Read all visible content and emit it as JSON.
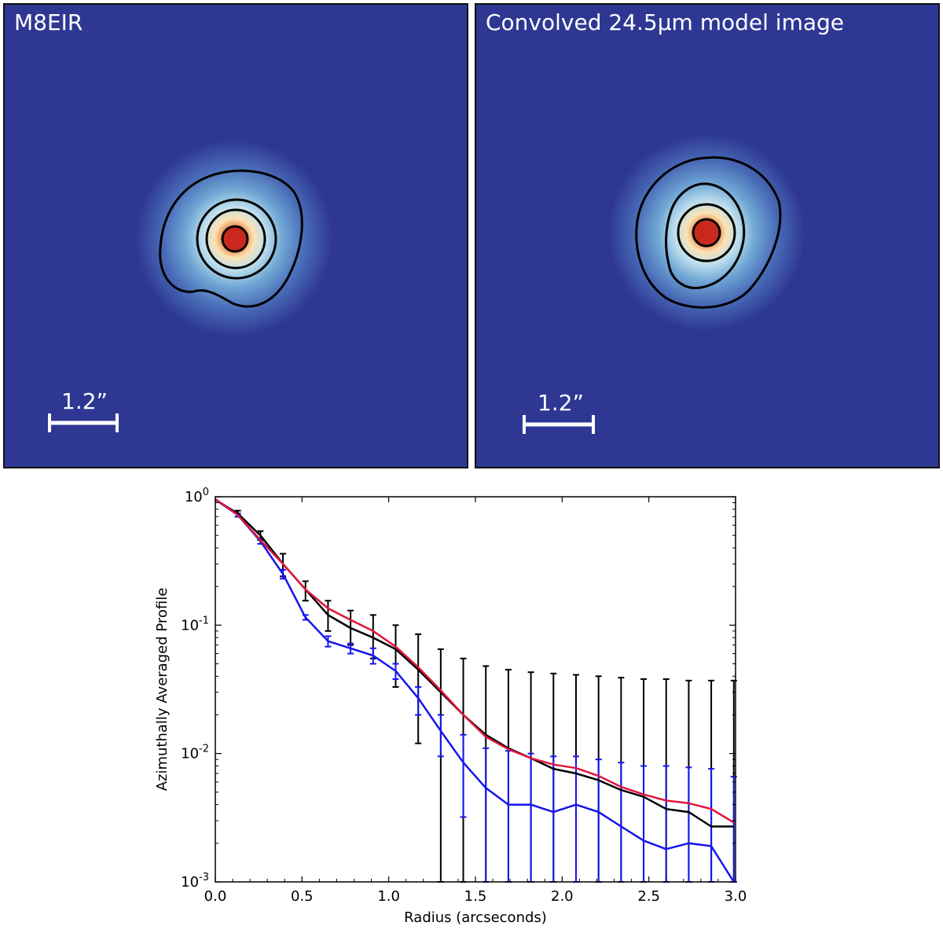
{
  "panels": [
    {
      "title": "M8EIR",
      "scale_bar_label": "1.2”"
    },
    {
      "title": "Convolved 24.5μm model image",
      "scale_bar_label": "1.2”"
    }
  ],
  "colors": {
    "background": "#2e3893",
    "core": "#c8281e",
    "black_series": "#000000",
    "blue_series": "#1515ee",
    "red_series": "#e0163c"
  },
  "chart_data": {
    "type": "line",
    "title": "",
    "xlabel": "Radius (arcseconds)",
    "ylabel": "Azimuthally Averaged Profile",
    "xlim": [
      0.0,
      3.0
    ],
    "ylim_log10": [
      -3,
      0
    ],
    "yscale": "log",
    "x_ticks": [
      "0.0",
      "0.5",
      "1.0",
      "1.5",
      "2.0",
      "2.5",
      "3.0"
    ],
    "x_tick_values": [
      0.0,
      0.5,
      1.0,
      1.5,
      2.0,
      2.5,
      3.0
    ],
    "y_ticks": [
      {
        "base": "10",
        "exp": "0",
        "value": 1
      },
      {
        "base": "10",
        "exp": "-1",
        "value": 0.1
      },
      {
        "base": "10",
        "exp": "-2",
        "value": 0.01
      },
      {
        "base": "10",
        "exp": "-3",
        "value": 0.001
      }
    ],
    "x": [
      0.0,
      0.13,
      0.26,
      0.39,
      0.52,
      0.65,
      0.78,
      0.91,
      1.04,
      1.17,
      1.3,
      1.43,
      1.56,
      1.69,
      1.82,
      1.95,
      2.08,
      2.21,
      2.34,
      2.47,
      2.6,
      2.73,
      2.86,
      2.99
    ],
    "series": [
      {
        "name": "black",
        "color": "#000000",
        "values": [
          0.95,
          0.74,
          0.5,
          0.3,
          0.19,
          0.12,
          0.095,
          0.08,
          0.065,
          0.045,
          0.03,
          0.02,
          0.014,
          0.011,
          0.0092,
          0.0076,
          0.007,
          0.0062,
          0.0052,
          0.0046,
          0.0037,
          0.0035,
          0.0027,
          0.0027
        ],
        "err_upper": [
          null,
          0.78,
          0.54,
          0.36,
          0.22,
          0.155,
          0.13,
          0.12,
          0.1,
          0.085,
          0.065,
          0.055,
          0.048,
          0.045,
          0.043,
          0.042,
          0.041,
          0.04,
          0.039,
          0.038,
          0.038,
          0.037,
          0.037,
          0.037
        ],
        "err_lower": [
          null,
          0.7,
          0.46,
          0.24,
          0.155,
          0.09,
          0.07,
          0.055,
          0.033,
          0.012,
          0.001,
          0.001,
          0.001,
          0.001,
          0.001,
          0.001,
          0.001,
          0.001,
          0.001,
          0.001,
          0.001,
          0.001,
          0.001,
          0.001
        ]
      },
      {
        "name": "blue",
        "color": "#1515ee",
        "values": [
          0.95,
          0.72,
          0.45,
          0.25,
          0.115,
          0.075,
          0.066,
          0.058,
          0.044,
          0.027,
          0.015,
          0.0085,
          0.0054,
          0.004,
          0.004,
          0.0035,
          0.004,
          0.0035,
          0.0027,
          0.0021,
          0.0018,
          0.002,
          0.0019,
          0.001
        ],
        "err_upper": [
          null,
          0.74,
          0.47,
          0.27,
          0.12,
          0.082,
          0.072,
          0.066,
          0.05,
          0.033,
          0.02,
          0.014,
          0.011,
          0.0105,
          0.01,
          0.0095,
          0.0095,
          0.009,
          0.0085,
          0.008,
          0.008,
          0.0078,
          0.0076,
          0.0066
        ],
        "err_lower": [
          null,
          0.7,
          0.43,
          0.23,
          0.11,
          0.068,
          0.06,
          0.05,
          0.038,
          0.02,
          0.0095,
          0.0032,
          0.001,
          0.001,
          0.001,
          0.001,
          0.001,
          0.001,
          0.001,
          0.001,
          0.001,
          0.001,
          0.001,
          0.001
        ]
      },
      {
        "name": "red",
        "color": "#e0163c",
        "values": [
          0.96,
          0.72,
          0.46,
          0.3,
          0.19,
          0.135,
          0.11,
          0.09,
          0.068,
          0.047,
          0.031,
          0.02,
          0.0135,
          0.0108,
          0.0092,
          0.0082,
          0.0077,
          0.0067,
          0.0055,
          0.0048,
          0.0043,
          0.0041,
          0.0037,
          0.0029
        ]
      }
    ]
  }
}
